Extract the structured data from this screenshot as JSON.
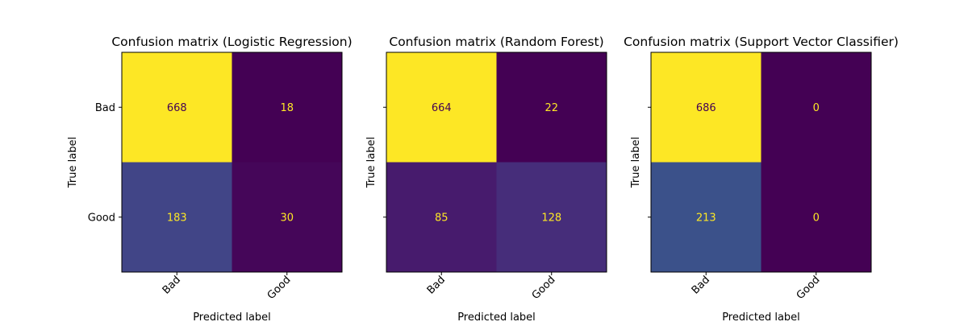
{
  "chart_data": [
    {
      "type": "heatmap",
      "title": "Confusion matrix (Logistic Regression)",
      "xlabel": "Predicted label",
      "ylabel": "True label",
      "x_categories": [
        "Bad",
        "Good"
      ],
      "y_categories": [
        "Bad",
        "Good"
      ],
      "values": [
        [
          668,
          18
        ],
        [
          183,
          30
        ]
      ],
      "colormap": "viridis",
      "grid": false
    },
    {
      "type": "heatmap",
      "title": "Confusion matrix (Random Forest)",
      "xlabel": "Predicted label",
      "ylabel": "True label",
      "x_categories": [
        "Bad",
        "Good"
      ],
      "y_categories": [
        "Bad",
        "Good"
      ],
      "values": [
        [
          664,
          22
        ],
        [
          85,
          128
        ]
      ],
      "colormap": "viridis",
      "grid": false
    },
    {
      "type": "heatmap",
      "title": "Confusion matrix (Support Vector Classifier)",
      "xlabel": "Predicted label",
      "ylabel": "True label",
      "x_categories": [
        "Bad",
        "Good"
      ],
      "y_categories": [
        "Bad",
        "Good"
      ],
      "values": [
        [
          686,
          0
        ],
        [
          213,
          0
        ]
      ],
      "colormap": "viridis",
      "grid": false
    }
  ],
  "colors": {
    "viridis_low": "#440154",
    "viridis_high": "#fde725",
    "label_on_dark": "#fde725",
    "label_on_light": "#440154",
    "axis": "#000000"
  }
}
